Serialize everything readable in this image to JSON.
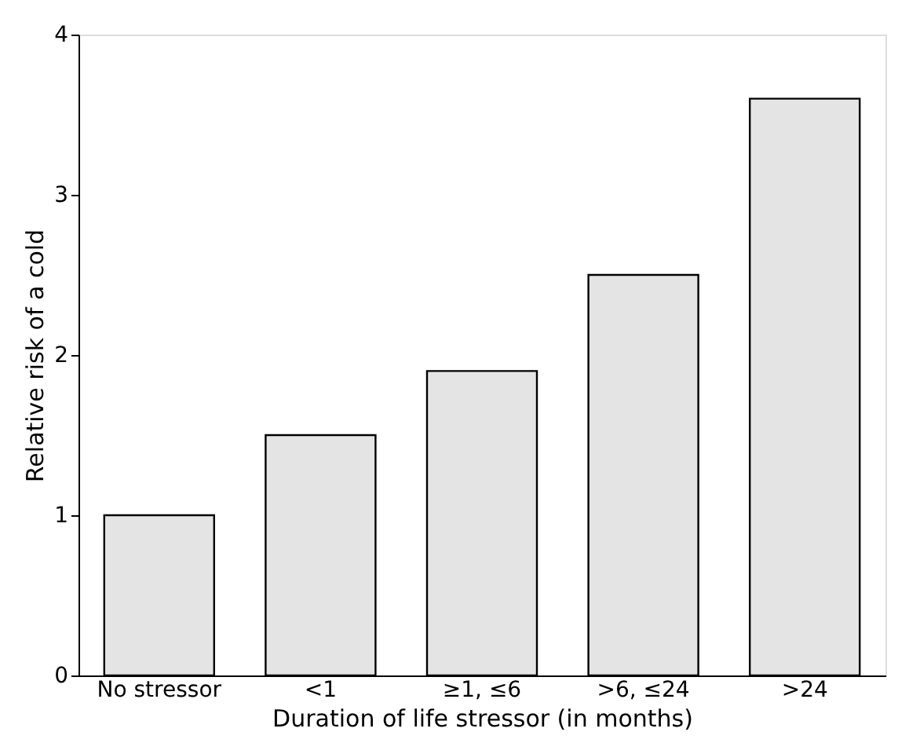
{
  "chart_data": {
    "type": "bar",
    "xlabel": "Duration of life stressor (in months)",
    "ylabel": "Relative risk of a cold",
    "categories": [
      "No stressor",
      "<1",
      "≥1, ≤6",
      ">6, ≤24",
      ">24"
    ],
    "values": [
      1.0,
      1.5,
      1.9,
      2.5,
      3.6
    ],
    "color": "#e4e4e4",
    "ylim": [
      0,
      4
    ],
    "yticks": [
      0,
      1,
      2,
      3,
      4
    ],
    "grid": false
  }
}
